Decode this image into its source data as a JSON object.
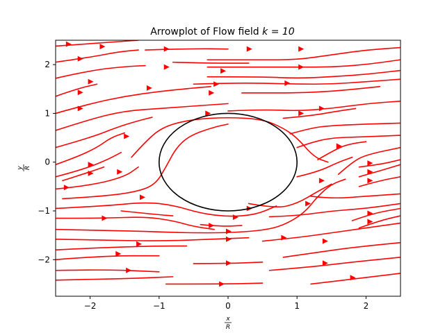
{
  "chart_data": {
    "type": "streamplot",
    "title": "Arrowplot of Flow field k = 10",
    "title_parts": {
      "prefix": "Arrowplot of Flow field ",
      "math": "k = 10"
    },
    "xlabel": {
      "num": "x",
      "den": "R"
    },
    "ylabel": {
      "num": "y",
      "den": "R"
    },
    "xlim": [
      -2.5,
      2.5
    ],
    "ylim": [
      -2.75,
      2.5
    ],
    "xticks": [
      -2,
      -1,
      0,
      1,
      2
    ],
    "yticks": [
      -2,
      -1,
      0,
      1,
      2
    ],
    "xtick_labels": [
      "−2",
      "−1",
      "0",
      "1",
      "2"
    ],
    "ytick_labels": [
      "−2",
      "−1",
      "0",
      "1",
      "2"
    ],
    "grid": false,
    "cylinder": {
      "center": [
        0,
        0
      ],
      "radius": 1,
      "color": "#000000"
    },
    "stream_color": "#ff0000",
    "streamlines": [
      [
        [
          -2.5,
          2.38
        ],
        [
          -1.8,
          2.45
        ],
        [
          -1.3,
          2.5
        ]
      ],
      [
        [
          -2.5,
          2.05
        ],
        [
          -2.0,
          2.15
        ],
        [
          -1.6,
          2.26
        ],
        [
          -1.3,
          2.3
        ]
      ],
      [
        [
          -2.5,
          1.72
        ],
        [
          -2.0,
          1.88
        ],
        [
          -1.5,
          1.96
        ],
        [
          -1.2,
          1.98
        ]
      ],
      [
        [
          -2.5,
          1.35
        ],
        [
          -2.2,
          1.5
        ],
        [
          -1.9,
          1.6
        ]
      ],
      [
        [
          -2.5,
          1.0
        ],
        [
          -2.0,
          1.2
        ],
        [
          -1.5,
          1.35
        ],
        [
          -1.0,
          1.45
        ],
        [
          -0.5,
          1.52
        ],
        [
          -0.25,
          1.55
        ]
      ],
      [
        [
          -2.5,
          0.65
        ],
        [
          -2.0,
          0.88
        ],
        [
          -1.5,
          1.05
        ],
        [
          -1.0,
          1.1
        ],
        [
          -0.5,
          1.15
        ],
        [
          0.0,
          1.2
        ]
      ],
      [
        [
          -2.5,
          0.3
        ],
        [
          -2.0,
          0.5
        ],
        [
          -1.6,
          0.72
        ],
        [
          -1.3,
          0.85
        ],
        [
          -1.1,
          0.92
        ]
      ],
      [
        [
          -2.5,
          -0.05
        ],
        [
          -2.2,
          0.1
        ],
        [
          -1.9,
          0.3
        ],
        [
          -1.7,
          0.5
        ],
        [
          -1.5,
          0.6
        ]
      ],
      [
        [
          -2.5,
          -0.3
        ],
        [
          -2.1,
          -0.15
        ],
        [
          -1.75,
          0.05
        ],
        [
          -1.55,
          0.2
        ]
      ],
      [
        [
          -2.4,
          -0.38
        ],
        [
          -2.0,
          -0.2
        ],
        [
          -1.8,
          -0.1
        ]
      ],
      [
        [
          -2.5,
          -0.55
        ],
        [
          -2.0,
          -0.48
        ],
        [
          -1.5,
          -0.3
        ],
        [
          -1.3,
          -0.1
        ]
      ],
      [
        [
          -1.4,
          0.1
        ],
        [
          -1.15,
          0.5
        ],
        [
          -0.9,
          0.75
        ],
        [
          -0.5,
          0.88
        ],
        [
          0.0,
          0.92
        ],
        [
          0.5,
          0.88
        ],
        [
          0.8,
          0.7
        ],
        [
          1.0,
          0.5
        ],
        [
          1.25,
          0.1
        ],
        [
          1.45,
          0.0
        ]
      ],
      [
        [
          -2.4,
          -0.75
        ],
        [
          -1.8,
          -0.7
        ],
        [
          -1.3,
          -0.6
        ],
        [
          -1.05,
          -0.45
        ],
        [
          -0.9,
          -0.1
        ],
        [
          -0.75,
          0.3
        ],
        [
          -0.55,
          0.55
        ],
        [
          -0.2,
          0.72
        ],
        [
          0.0,
          0.78
        ]
      ],
      [
        [
          -2.5,
          -0.95
        ],
        [
          -1.8,
          -0.9
        ],
        [
          -1.2,
          -0.82
        ],
        [
          -0.8,
          -0.88
        ],
        [
          -0.4,
          -1.05
        ],
        [
          0.0,
          -1.12
        ],
        [
          0.4,
          -1.08
        ],
        [
          0.7,
          -0.9
        ]
      ],
      [
        [
          -2.5,
          -1.15
        ],
        [
          -1.8,
          -1.15
        ],
        [
          -1.2,
          -1.12
        ],
        [
          -0.8,
          -1.2
        ],
        [
          -0.5,
          -1.32
        ],
        [
          -0.2,
          -1.38
        ]
      ],
      [
        [
          -2.5,
          -1.38
        ],
        [
          -1.8,
          -1.4
        ],
        [
          -1.2,
          -1.42
        ],
        [
          -0.6,
          -1.45
        ],
        [
          0.0,
          -1.45
        ],
        [
          0.5,
          -1.4
        ],
        [
          0.8,
          -1.3
        ],
        [
          1.1,
          -1.05
        ],
        [
          1.3,
          -0.7
        ],
        [
          1.5,
          -0.45
        ],
        [
          1.7,
          -0.35
        ]
      ],
      [
        [
          -2.5,
          -1.58
        ],
        [
          -1.8,
          -1.6
        ],
        [
          -1.0,
          -1.62
        ],
        [
          -0.2,
          -1.58
        ],
        [
          0.3,
          -1.55
        ]
      ],
      [
        [
          -2.5,
          -1.8
        ],
        [
          -1.8,
          -1.75
        ],
        [
          -1.0,
          -1.72
        ],
        [
          -0.6,
          -1.72
        ]
      ],
      [
        [
          -2.5,
          -2.0
        ],
        [
          -1.8,
          -1.92
        ],
        [
          -1.0,
          -1.92
        ]
      ],
      [
        [
          -2.5,
          -2.22
        ],
        [
          -1.8,
          -2.2
        ],
        [
          -1.0,
          -2.25
        ]
      ],
      [
        [
          -2.5,
          -2.42
        ],
        [
          -1.8,
          -2.4
        ],
        [
          -1.3,
          -2.38
        ],
        [
          -0.8,
          -2.35
        ]
      ],
      [
        [
          -1.55,
          -1.0
        ],
        [
          -1.0,
          -1.08
        ],
        [
          -0.8,
          -1.1
        ]
      ],
      [
        [
          -0.4,
          -1.28
        ],
        [
          -0.1,
          -1.32
        ],
        [
          0.2,
          -1.3
        ]
      ],
      [
        [
          -0.9,
          -2.5
        ],
        [
          0.0,
          -2.5
        ],
        [
          0.5,
          -2.48
        ]
      ],
      [
        [
          -0.5,
          -2.08
        ],
        [
          0.0,
          -2.08
        ],
        [
          0.5,
          -2.05
        ]
      ],
      [
        [
          -0.3,
          2.1
        ],
        [
          0.2,
          2.1
        ],
        [
          0.5,
          2.1
        ],
        [
          1.0,
          2.1
        ],
        [
          1.5,
          2.2
        ],
        [
          2.0,
          2.3
        ],
        [
          2.5,
          2.35
        ]
      ],
      [
        [
          -1.2,
          2.3
        ],
        [
          -0.5,
          2.33
        ],
        [
          0.0,
          2.32
        ]
      ],
      [
        [
          -0.3,
          1.95
        ],
        [
          0.3,
          1.95
        ],
        [
          1.0,
          1.95
        ],
        [
          1.5,
          1.95
        ],
        [
          2.0,
          2.0
        ],
        [
          2.5,
          2.1
        ]
      ],
      [
        [
          -0.3,
          1.75
        ],
        [
          0.5,
          1.75
        ],
        [
          1.0,
          1.72
        ],
        [
          1.5,
          1.75
        ],
        [
          2.0,
          1.8
        ],
        [
          2.5,
          1.88
        ]
      ],
      [
        [
          -0.5,
          1.6
        ],
        [
          0.0,
          1.62
        ],
        [
          0.5,
          1.62
        ],
        [
          1.0,
          1.6
        ],
        [
          1.5,
          1.6
        ],
        [
          2.0,
          1.65
        ],
        [
          2.5,
          1.7
        ]
      ],
      [
        [
          0.2,
          1.42
        ],
        [
          0.6,
          1.42
        ],
        [
          1.0,
          1.42
        ],
        [
          1.5,
          1.45
        ],
        [
          2.0,
          1.52
        ],
        [
          2.2,
          1.55
        ]
      ],
      [
        [
          0.0,
          1.05
        ],
        [
          0.5,
          1.08
        ],
        [
          1.0,
          1.05
        ],
        [
          1.5,
          1.1
        ],
        [
          2.0,
          1.2
        ],
        [
          2.5,
          1.25
        ]
      ],
      [
        [
          0.9,
          0.58
        ],
        [
          1.2,
          0.7
        ],
        [
          1.5,
          0.75
        ],
        [
          2.0,
          0.78
        ],
        [
          2.5,
          0.8
        ]
      ],
      [
        [
          0.8,
          0.9
        ],
        [
          1.2,
          0.95
        ],
        [
          1.6,
          1.05
        ],
        [
          1.85,
          1.1
        ]
      ],
      [
        [
          1.0,
          0.3
        ],
        [
          1.2,
          0.4
        ],
        [
          1.5,
          0.5
        ],
        [
          2.0,
          0.52
        ],
        [
          2.5,
          0.55
        ]
      ],
      [
        [
          1.6,
          -0.25
        ],
        [
          1.8,
          0.0
        ],
        [
          2.0,
          0.15
        ],
        [
          2.5,
          0.3
        ]
      ],
      [
        [
          1.3,
          0.05
        ],
        [
          1.6,
          0.3
        ],
        [
          1.8,
          0.38
        ],
        [
          2.0,
          0.42
        ]
      ],
      [
        [
          1.9,
          -0.1
        ],
        [
          2.2,
          -0.05
        ],
        [
          2.5,
          0.05
        ]
      ],
      [
        [
          1.9,
          -0.3
        ],
        [
          2.2,
          -0.18
        ],
        [
          2.5,
          -0.05
        ]
      ],
      [
        [
          1.9,
          -0.5
        ],
        [
          2.2,
          -0.38
        ],
        [
          2.5,
          -0.3
        ]
      ],
      [
        [
          0.3,
          -0.85
        ],
        [
          0.7,
          -0.95
        ],
        [
          1.0,
          -0.85
        ],
        [
          1.3,
          -0.6
        ],
        [
          1.5,
          -0.45
        ]
      ],
      [
        [
          1.0,
          -0.3
        ],
        [
          1.3,
          -0.2
        ],
        [
          1.6,
          0.0
        ],
        [
          1.8,
          0.1
        ]
      ],
      [
        [
          1.2,
          -0.7
        ],
        [
          1.5,
          -0.75
        ],
        [
          2.0,
          -0.7
        ],
        [
          2.5,
          -0.65
        ]
      ],
      [
        [
          0.6,
          -1.12
        ],
        [
          1.0,
          -1.1
        ],
        [
          1.5,
          -1.0
        ],
        [
          2.0,
          -0.95
        ],
        [
          2.5,
          -0.85
        ]
      ],
      [
        [
          1.9,
          -1.35
        ],
        [
          2.2,
          -1.2
        ],
        [
          2.5,
          -1.1
        ]
      ],
      [
        [
          1.8,
          -1.2
        ],
        [
          2.1,
          -1.05
        ],
        [
          2.5,
          -0.95
        ]
      ],
      [
        [
          0.5,
          -1.62
        ],
        [
          1.0,
          -1.55
        ],
        [
          1.5,
          -1.45
        ],
        [
          2.0,
          -1.35
        ],
        [
          2.5,
          -1.25
        ]
      ],
      [
        [
          0.8,
          -1.95
        ],
        [
          1.3,
          -1.85
        ],
        [
          1.8,
          -1.75
        ],
        [
          2.5,
          -1.65
        ]
      ],
      [
        [
          0.6,
          -2.22
        ],
        [
          1.2,
          -2.15
        ],
        [
          1.8,
          -2.05
        ],
        [
          2.5,
          -1.95
        ]
      ],
      [
        [
          1.2,
          -2.5
        ],
        [
          1.8,
          -2.4
        ],
        [
          2.5,
          -2.28
        ]
      ],
      [
        [
          -0.8,
          2.05
        ],
        [
          -0.3,
          2.03
        ],
        [
          0.3,
          2.03
        ]
      ]
    ],
    "arrows": [
      [
        -2.32,
        2.42
      ],
      [
        -1.83,
        2.37
      ],
      [
        -2.15,
        2.12
      ],
      [
        -0.9,
        2.32
      ],
      [
        0.3,
        2.32
      ],
      [
        1.05,
        2.32
      ],
      [
        -0.9,
        1.95
      ],
      [
        -0.08,
        1.87
      ],
      [
        1.05,
        1.95
      ],
      [
        -2.0,
        1.65
      ],
      [
        -1.15,
        1.52
      ],
      [
        -0.18,
        1.6
      ],
      [
        0.85,
        1.62
      ],
      [
        -2.15,
        1.43
      ],
      [
        -0.25,
        1.42
      ],
      [
        -2.15,
        1.1
      ],
      [
        -0.3,
        1.0
      ],
      [
        1.05,
        1.0
      ],
      [
        1.35,
        1.1
      ],
      [
        -1.48,
        0.53
      ],
      [
        -2.0,
        -0.05
      ],
      [
        -2.0,
        -0.23
      ],
      [
        -1.58,
        -0.2
      ],
      [
        -2.35,
        -0.52
      ],
      [
        -1.25,
        -0.72
      ],
      [
        -1.8,
        -1.15
      ],
      [
        0.3,
        -0.95
      ],
      [
        0.1,
        -1.13
      ],
      [
        -0.25,
        -1.3
      ],
      [
        0.0,
        -1.42
      ],
      [
        0.0,
        -1.58
      ],
      [
        -1.3,
        -1.68
      ],
      [
        0.8,
        -1.55
      ],
      [
        -1.6,
        -1.88
      ],
      [
        0.0,
        -2.07
      ],
      [
        -1.45,
        -2.22
      ],
      [
        -0.1,
        -2.5
      ],
      [
        1.4,
        -1.62
      ],
      [
        1.4,
        -2.07
      ],
      [
        1.8,
        -2.37
      ],
      [
        1.15,
        -0.85
      ],
      [
        1.6,
        0.33
      ],
      [
        1.35,
        -0.38
      ],
      [
        2.05,
        -0.02
      ],
      [
        2.05,
        -0.2
      ],
      [
        2.05,
        -0.38
      ],
      [
        2.05,
        -1.05
      ],
      [
        2.05,
        -1.22
      ]
    ]
  }
}
